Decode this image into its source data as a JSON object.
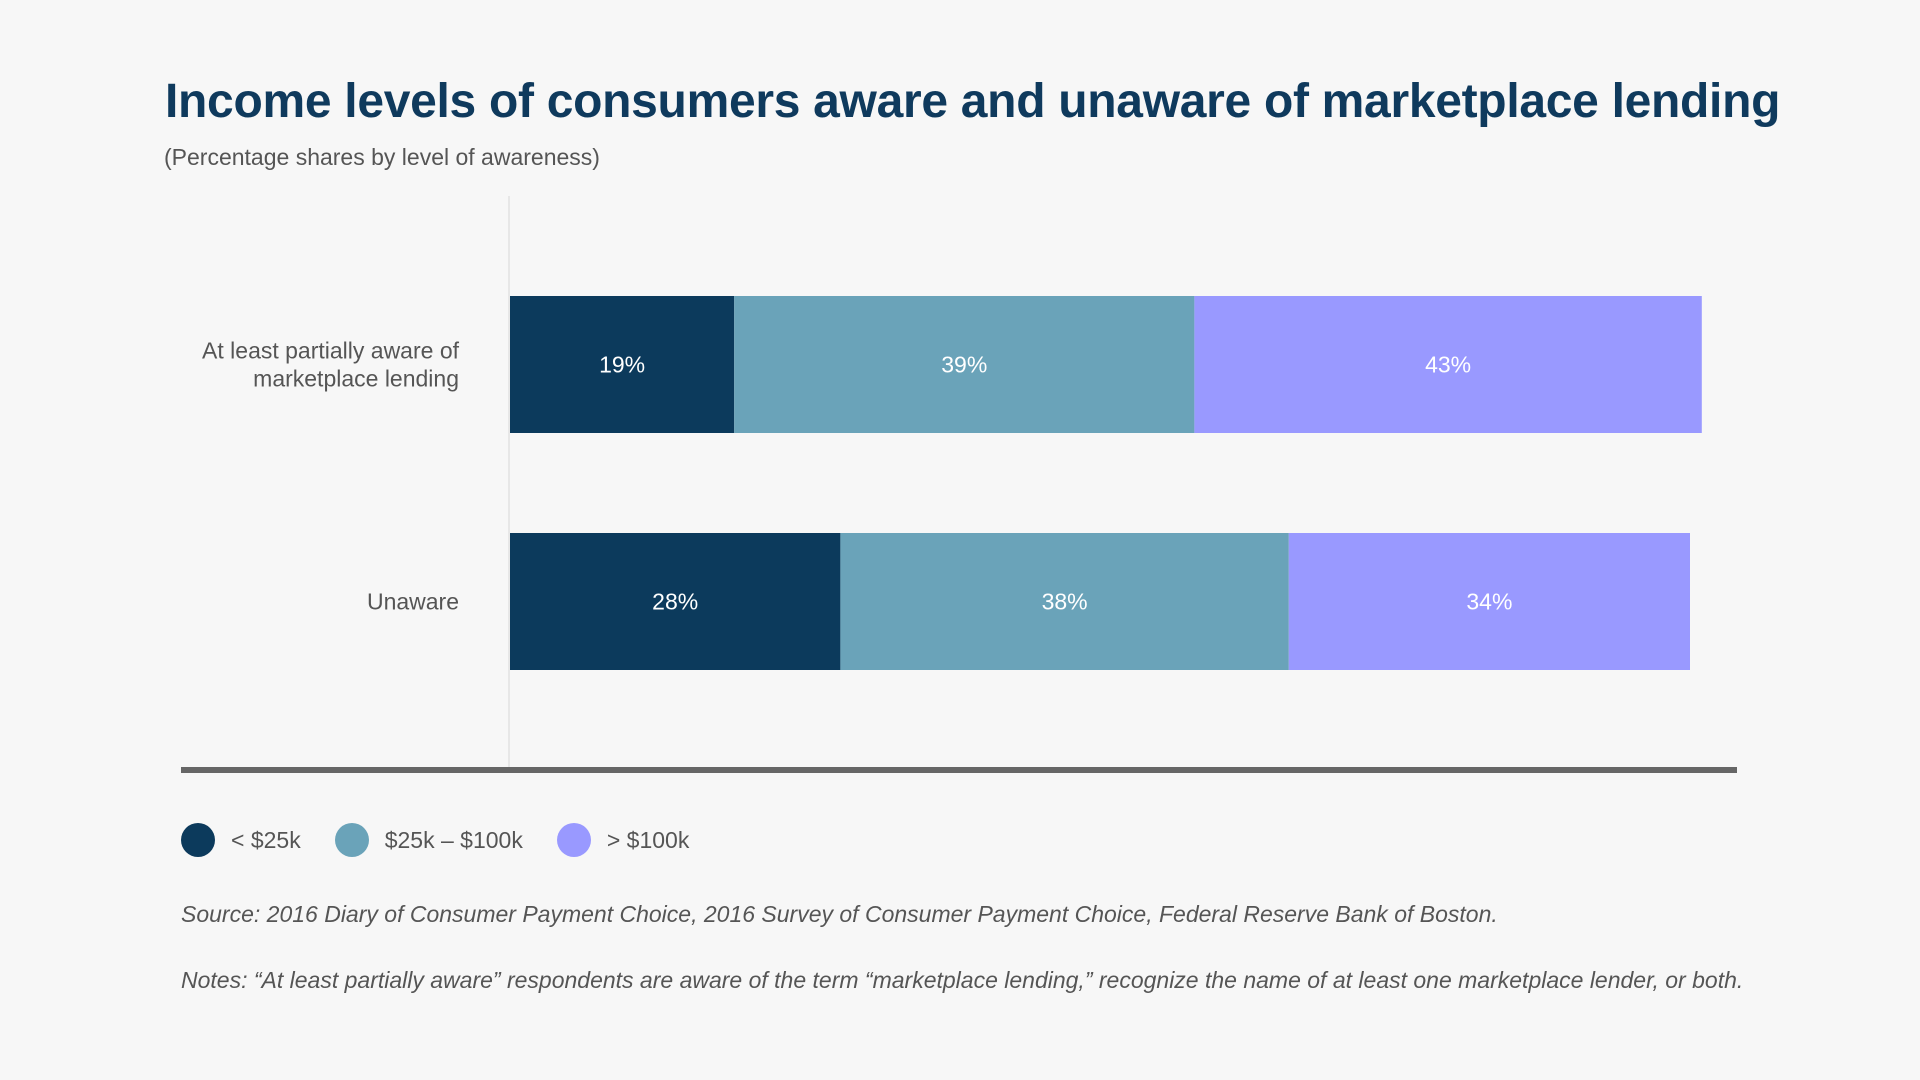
{
  "title": "Income levels of consumers aware and unaware of marketplace lending",
  "subtitle": "(Percentage shares by level of awareness)",
  "source": "Source: 2016 Diary of Consumer Payment Choice, 2016 Survey of Consumer Payment Choice, Federal Reserve Bank of Boston.",
  "notes": "Notes: “At least partially aware” respondents are aware of the term “marketplace lending,” recognize the name of at least one marketplace lender, or both.",
  "chart_data": {
    "type": "bar",
    "orientation": "horizontal",
    "stacked": true,
    "title": "Income levels of consumers aware and unaware of marketplace lending",
    "subtitle": "(Percentage shares by level of awareness)",
    "categories": [
      [
        "At least partially aware of",
        "marketplace lending"
      ],
      [
        "Unaware"
      ]
    ],
    "series": [
      {
        "name": "< $25k",
        "color": "#0c3a5c",
        "values": [
          19,
          28
        ],
        "labels": [
          "19%",
          "28%"
        ]
      },
      {
        "name": "$25k – $100k",
        "color": "#6aa3b9",
        "values": [
          39,
          38
        ],
        "labels": [
          "39%",
          "38%"
        ]
      },
      {
        "name": "> $100k",
        "color": "#9999ff",
        "values": [
          43,
          34
        ],
        "labels": [
          "43%",
          "34%"
        ]
      }
    ],
    "xlim": [
      0,
      100
    ],
    "grid": false,
    "legend": "bottom-left"
  }
}
